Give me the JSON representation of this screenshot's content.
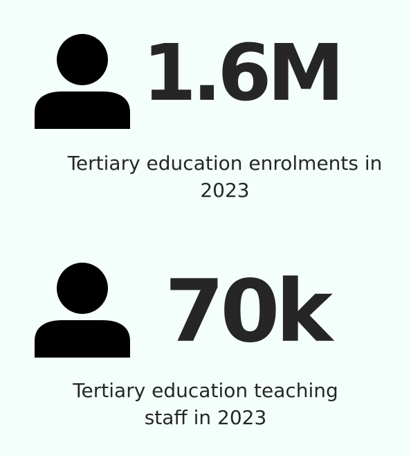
{
  "colors": {
    "background": "#f4fffc",
    "text": "#262626",
    "icon": "#000000"
  },
  "stats": [
    {
      "icon": "person-icon",
      "value": "1.6M",
      "caption": "Tertiary education enrolments in 2023"
    },
    {
      "icon": "person-icon",
      "value": "70k",
      "caption": "Tertiary education teaching staff in 2023"
    }
  ]
}
